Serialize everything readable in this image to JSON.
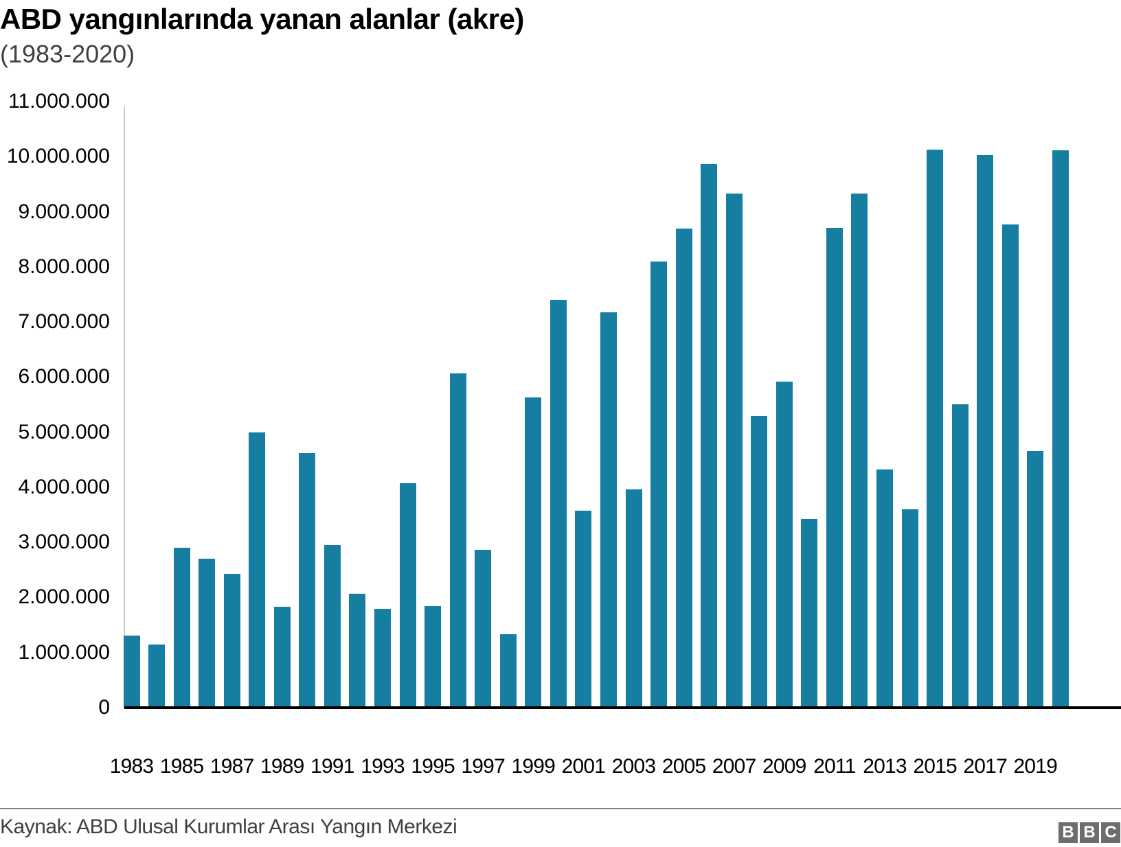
{
  "header": {
    "title": "ABD yangınlarında yanan alanlar (akre)",
    "subtitle": "(1983-2020)"
  },
  "footer": {
    "source": "Kaynak: ABD Ulusal Kurumlar Arası Yangın Merkezi",
    "logo": [
      "B",
      "B",
      "C"
    ]
  },
  "colors": {
    "bar": "#167ea1",
    "axis": "#000000",
    "yaxis_line": "#cccccc",
    "footer_rule": "#7f7f7f",
    "logo_bg": "#6d6d6d"
  },
  "y_ticks": [
    "0",
    "1.000.000",
    "2.000.000",
    "3.000.000",
    "4.000.000",
    "5.000.000",
    "6.000.000",
    "7.000.000",
    "8.000.000",
    "9.000.000",
    "10.000.000",
    "11.000.000"
  ],
  "x_tick_labels": [
    "1983",
    "1985",
    "1987",
    "1989",
    "1991",
    "1993",
    "1995",
    "1997",
    "1999",
    "2001",
    "2003",
    "2005",
    "2007",
    "2009",
    "2011",
    "2013",
    "2015",
    "2017",
    "2019"
  ],
  "chart_data": {
    "type": "bar",
    "title": "ABD yangınlarında yanan alanlar (akre)",
    "subtitle": "(1983-2020)",
    "xlabel": "",
    "ylabel": "",
    "ylim": [
      0,
      11000000
    ],
    "grid": false,
    "legend": null,
    "categories": [
      "1983",
      "1984",
      "1985",
      "1986",
      "1987",
      "1988",
      "1989",
      "1990",
      "1991",
      "1992",
      "1993",
      "1994",
      "1995",
      "1996",
      "1997",
      "1998",
      "1999",
      "2000",
      "2001",
      "2002",
      "2003",
      "2004",
      "2005",
      "2006",
      "2007",
      "2008",
      "2009",
      "2010",
      "2011",
      "2012",
      "2013",
      "2014",
      "2015",
      "2016",
      "2017",
      "2018",
      "2019",
      "2020"
    ],
    "values": [
      1310000,
      1150000,
      2900000,
      2700000,
      2430000,
      5000000,
      1830000,
      4620000,
      2950000,
      2070000,
      1800000,
      4070000,
      1840000,
      6070000,
      2860000,
      1330000,
      5630000,
      7400000,
      3570000,
      7180000,
      3960000,
      8100000,
      8690000,
      9870000,
      9330000,
      5290000,
      5920000,
      3420000,
      8710000,
      9330000,
      4320000,
      3600000,
      10130000,
      5510000,
      10030000,
      8770000,
      4660000,
      10120000
    ],
    "source": "Kaynak: ABD Ulusal Kurumlar Arası Yangın Merkezi"
  }
}
